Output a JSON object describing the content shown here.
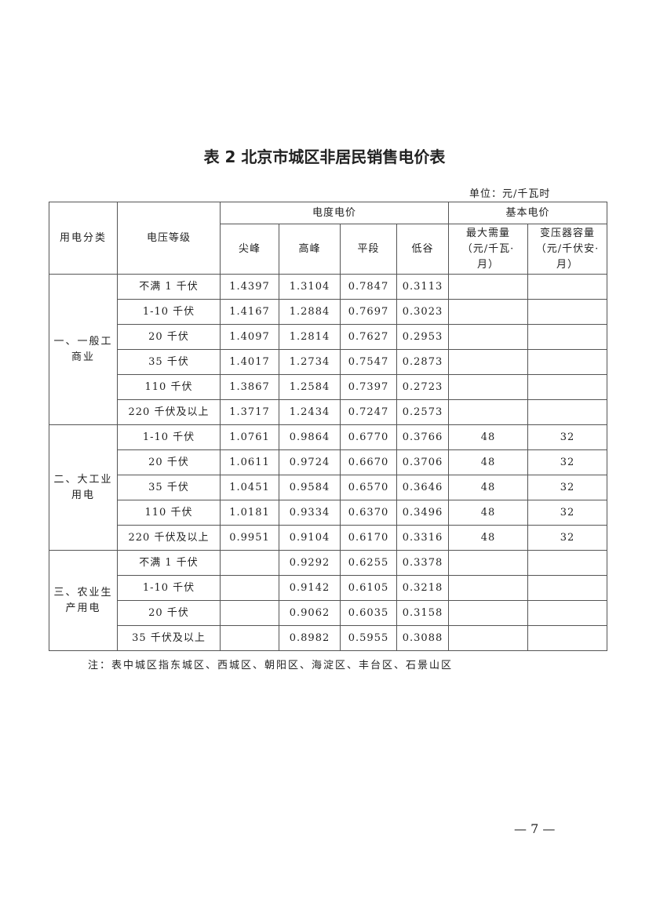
{
  "title": "表 2 北京市城区非居民销售电价表",
  "unit": "单位：元/千瓦时",
  "headers": {
    "category": "用电分类",
    "voltage": "电压等级",
    "energy_price": "电度电价",
    "basic_price": "基本电价",
    "peak_top": "尖峰",
    "peak": "高峰",
    "flat": "平段",
    "valley": "低谷",
    "max_demand": "最大需量（元/千瓦·月）",
    "transformer": "变压器容量（元/千伏安·月）"
  },
  "groups": [
    {
      "category": "一、一般工商业",
      "rows": [
        [
          "不满 1 千伏",
          "1.4397",
          "1.3104",
          "0.7847",
          "0.3113",
          "",
          ""
        ],
        [
          "1-10 千伏",
          "1.4167",
          "1.2884",
          "0.7697",
          "0.3023",
          "",
          ""
        ],
        [
          "20 千伏",
          "1.4097",
          "1.2814",
          "0.7627",
          "0.2953",
          "",
          ""
        ],
        [
          "35 千伏",
          "1.4017",
          "1.2734",
          "0.7547",
          "0.2873",
          "",
          ""
        ],
        [
          "110 千伏",
          "1.3867",
          "1.2584",
          "0.7397",
          "0.2723",
          "",
          ""
        ],
        [
          "220 千伏及以上",
          "1.3717",
          "1.2434",
          "0.7247",
          "0.2573",
          "",
          ""
        ]
      ]
    },
    {
      "category": "二、大工业用电",
      "rows": [
        [
          "1-10 千伏",
          "1.0761",
          "0.9864",
          "0.6770",
          "0.3766",
          "48",
          "32"
        ],
        [
          "20 千伏",
          "1.0611",
          "0.9724",
          "0.6670",
          "0.3706",
          "48",
          "32"
        ],
        [
          "35 千伏",
          "1.0451",
          "0.9584",
          "0.6570",
          "0.3646",
          "48",
          "32"
        ],
        [
          "110 千伏",
          "1.0181",
          "0.9334",
          "0.6370",
          "0.3496",
          "48",
          "32"
        ],
        [
          "220 千伏及以上",
          "0.9951",
          "0.9104",
          "0.6170",
          "0.3316",
          "48",
          "32"
        ]
      ]
    },
    {
      "category": "三、农业生产用电",
      "rows": [
        [
          "不满 1 千伏",
          "",
          "0.9292",
          "0.6255",
          "0.3378",
          "",
          ""
        ],
        [
          "1-10 千伏",
          "",
          "0.9142",
          "0.6105",
          "0.3218",
          "",
          ""
        ],
        [
          "20 千伏",
          "",
          "0.9062",
          "0.6035",
          "0.3158",
          "",
          ""
        ],
        [
          "35 千伏及以上",
          "",
          "0.8982",
          "0.5955",
          "0.3088",
          "",
          ""
        ]
      ]
    }
  ],
  "note": "注：表中城区指东城区、西城区、朝阳区、海淀区、丰台区、石景山区",
  "page_number": "— 7 —"
}
